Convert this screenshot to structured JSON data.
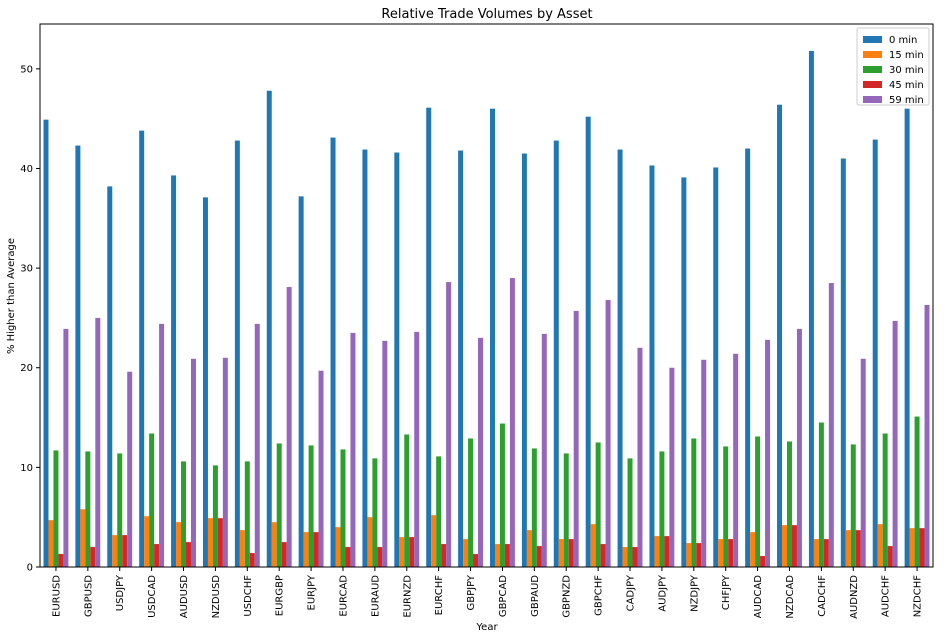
{
  "chart_data": {
    "type": "bar",
    "title": "Relative Trade Volumes by Asset",
    "xlabel": "Year",
    "ylabel": "% Higher than Average",
    "ylim": [
      0,
      54.5
    ],
    "yticks": [
      0,
      10,
      20,
      30,
      40,
      50
    ],
    "grid": false,
    "legend_position": "top-right",
    "categories": [
      "EURUSD",
      "GBPUSD",
      "USDJPY",
      "USDCAD",
      "AUDUSD",
      "NZDUSD",
      "USDCHF",
      "EURGBP",
      "EURJPY",
      "EURCAD",
      "EURAUD",
      "EURNZD",
      "EURCHF",
      "GBPJPY",
      "GBPCAD",
      "GBPAUD",
      "GBPNZD",
      "GBPCHF",
      "CADJPY",
      "AUDJPY",
      "NZDJPY",
      "CHFJPY",
      "AUDCAD",
      "NZDCAD",
      "CADCHF",
      "AUDNZD",
      "AUDCHF",
      "NZDCHF"
    ],
    "series": [
      {
        "name": "0 min",
        "color": "#1f77b4",
        "values": [
          44.9,
          42.3,
          38.2,
          43.8,
          39.3,
          37.1,
          42.8,
          47.8,
          37.2,
          43.1,
          41.9,
          41.6,
          46.1,
          41.8,
          46.0,
          41.5,
          42.8,
          45.2,
          41.9,
          40.3,
          39.1,
          40.1,
          42.0,
          46.4,
          51.8,
          41.0,
          42.9,
          46.0
        ]
      },
      {
        "name": "15 min",
        "color": "#ff7f0e",
        "values": [
          4.7,
          5.8,
          3.2,
          5.1,
          4.5,
          4.9,
          3.7,
          4.5,
          3.5,
          4.0,
          5.0,
          3.0,
          5.2,
          2.8,
          2.3,
          3.7,
          2.8,
          4.3,
          2.0,
          3.1,
          2.4,
          2.8,
          3.5,
          4.2,
          2.8,
          3.7,
          4.3,
          3.9
        ]
      },
      {
        "name": "30 min",
        "color": "#2ca02c",
        "values": [
          11.7,
          11.6,
          11.4,
          13.4,
          10.6,
          10.2,
          10.6,
          12.4,
          12.2,
          11.8,
          10.9,
          13.3,
          11.1,
          12.9,
          14.4,
          11.9,
          11.4,
          12.5,
          10.9,
          11.6,
          12.9,
          12.1,
          13.1,
          12.6,
          14.5,
          12.3,
          13.4,
          15.1
        ]
      },
      {
        "name": "45 min",
        "color": "#d62728",
        "values": [
          1.3,
          2.0,
          3.2,
          2.3,
          2.5,
          4.9,
          1.4,
          2.5,
          3.5,
          2.0,
          2.0,
          3.0,
          2.3,
          1.3,
          2.3,
          2.1,
          2.8,
          2.3,
          2.0,
          3.1,
          2.4,
          2.8,
          1.1,
          4.2,
          2.8,
          3.7,
          2.1,
          3.9
        ]
      },
      {
        "name": "59 min",
        "color": "#9467bd",
        "values": [
          23.9,
          25.0,
          19.6,
          24.4,
          20.9,
          21.0,
          24.4,
          28.1,
          19.7,
          23.5,
          22.7,
          23.6,
          28.6,
          23.0,
          29.0,
          23.4,
          25.7,
          26.8,
          22.0,
          20.0,
          20.8,
          21.4,
          22.8,
          23.9,
          28.5,
          20.9,
          24.7,
          26.3
        ]
      }
    ]
  }
}
